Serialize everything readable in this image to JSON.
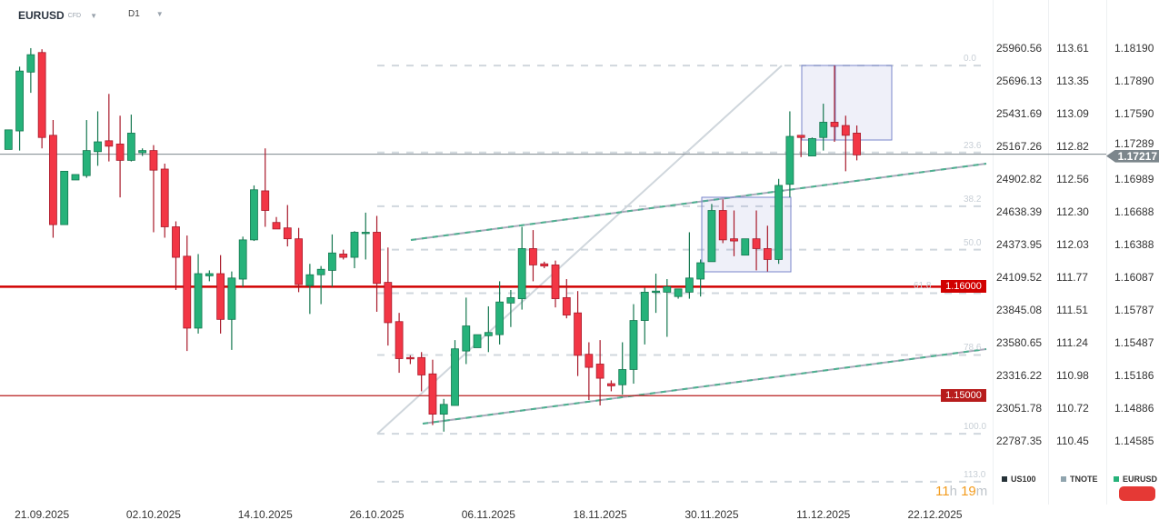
{
  "header": {
    "symbol": "EURUSD",
    "instrument_type": "CFD",
    "timeframe": "D1"
  },
  "colors": {
    "up": "#26b27a",
    "down": "#f23645",
    "support_1": "#d10000",
    "support_2": "#b71c1c",
    "current": "#7c868c",
    "fib": "#d0d7dd",
    "channel": "#4cb08f",
    "box": "#7986cb"
  },
  "current_price": "1.17217",
  "levels": [
    {
      "label": "1.16000",
      "price": 1.16,
      "color": "#d10000"
    },
    {
      "label": "1.15000",
      "price": 1.15,
      "color": "#b71c1c"
    }
  ],
  "axes": {
    "US100": [
      "25960.56",
      "25696.13",
      "25431.69",
      "25167.26",
      "24902.82",
      "24638.39",
      "24373.95",
      "24109.52",
      "23845.08",
      "23580.65",
      "23316.22",
      "23051.78",
      "22787.35"
    ],
    "TNOTE": [
      "113.61",
      "113.35",
      "113.09",
      "112.82",
      "112.56",
      "112.30",
      "112.03",
      "111.77",
      "111.51",
      "111.24",
      "110.98",
      "110.72",
      "110.45"
    ],
    "EURUSD": [
      "1.18190",
      "1.17890",
      "1.17590",
      "1.17289",
      "1.16989",
      "1.16688",
      "1.16388",
      "1.16087",
      "1.15787",
      "1.15487",
      "1.15186",
      "1.14886",
      "1.14585"
    ]
  },
  "legend": [
    {
      "label": "US100",
      "color": "#263238"
    },
    {
      "label": "TNOTE",
      "color": "#90a4ae"
    },
    {
      "label": "EURUSD",
      "color": "#26b27a"
    }
  ],
  "countdown": {
    "hours": "11",
    "h": "h",
    "minutes": "19",
    "m": "m"
  },
  "chart_data": {
    "type": "candlestick",
    "x_tick_labels": [
      "21.09.2025",
      "02.10.2025",
      "14.10.2025",
      "26.10.2025",
      "06.11.2025",
      "18.11.2025",
      "30.11.2025",
      "11.12.2025",
      "22.12.2025"
    ],
    "ylim": [
      1.14585,
      1.1819
    ],
    "ohlc": [
      [
        1.1726,
        1.1744,
        1.1726,
        1.1744
      ],
      [
        1.1743,
        1.1802,
        1.1725,
        1.1798
      ],
      [
        1.1797,
        1.1819,
        1.1778,
        1.1813
      ],
      [
        1.1815,
        1.1818,
        1.1727,
        1.1737
      ],
      [
        1.1739,
        1.1753,
        1.1645,
        1.1657
      ],
      [
        1.1657,
        1.1706,
        1.1657,
        1.1706
      ],
      [
        1.1698,
        1.1703,
        1.1698,
        1.1703
      ],
      [
        1.1702,
        1.1753,
        1.17,
        1.1725
      ],
      [
        1.1724,
        1.1761,
        1.1711,
        1.1733
      ],
      [
        1.1734,
        1.1777,
        1.1715,
        1.1729
      ],
      [
        1.1731,
        1.1757,
        1.1682,
        1.1716
      ],
      [
        1.1716,
        1.1758,
        1.1715,
        1.1741
      ],
      [
        1.1723,
        1.1727,
        1.172,
        1.1725
      ],
      [
        1.1725,
        1.173,
        1.165,
        1.1707
      ],
      [
        1.1708,
        1.1713,
        1.1645,
        1.1655
      ],
      [
        1.1655,
        1.166,
        1.1597,
        1.1627
      ],
      [
        1.1628,
        1.1647,
        1.1541,
        1.1562
      ],
      [
        1.1562,
        1.163,
        1.1557,
        1.1612
      ],
      [
        1.161,
        1.1615,
        1.1605,
        1.1612
      ],
      [
        1.1612,
        1.1629,
        1.1557,
        1.157
      ],
      [
        1.157,
        1.1614,
        1.1542,
        1.1608
      ],
      [
        1.1607,
        1.1646,
        1.16,
        1.1643
      ],
      [
        1.1643,
        1.1693,
        1.1642,
        1.1689
      ],
      [
        1.1688,
        1.1727,
        1.1655,
        1.167
      ],
      [
        1.1659,
        1.1664,
        1.1653,
        1.1653
      ],
      [
        1.1654,
        1.1675,
        1.1637,
        1.1644
      ],
      [
        1.1644,
        1.1654,
        1.1595,
        1.1602
      ],
      [
        1.1601,
        1.1621,
        1.1575,
        1.1611
      ],
      [
        1.1611,
        1.1619,
        1.1584,
        1.1616
      ],
      [
        1.1615,
        1.1648,
        1.16,
        1.1631
      ],
      [
        1.163,
        1.1634,
        1.1625,
        1.1627
      ],
      [
        1.1627,
        1.1651,
        1.1617,
        1.165
      ],
      [
        1.1649,
        1.1668,
        1.1625,
        1.165
      ],
      [
        1.165,
        1.1665,
        1.1577,
        1.1603
      ],
      [
        1.1604,
        1.1636,
        1.1546,
        1.1567
      ],
      [
        1.1568,
        1.1576,
        1.1521,
        1.1534
      ],
      [
        1.1535,
        1.1537,
        1.1529,
        1.1534
      ],
      [
        1.1535,
        1.154,
        1.1504,
        1.1519
      ],
      [
        1.152,
        1.1533,
        1.1473,
        1.1483
      ],
      [
        1.1483,
        1.1497,
        1.1467,
        1.1492
      ],
      [
        1.1491,
        1.1551,
        1.1491,
        1.1543
      ],
      [
        1.1541,
        1.159,
        1.1529,
        1.1564
      ],
      [
        1.1544,
        1.1556,
        1.1544,
        1.1556
      ],
      [
        1.1555,
        1.1582,
        1.154,
        1.1558
      ],
      [
        1.1556,
        1.1605,
        1.1547,
        1.1586
      ],
      [
        1.1585,
        1.1597,
        1.1563,
        1.159
      ],
      [
        1.1589,
        1.1655,
        1.1579,
        1.1635
      ],
      [
        1.1635,
        1.1652,
        1.1605,
        1.162
      ],
      [
        1.1621,
        1.1623,
        1.1617,
        1.1619
      ],
      [
        1.162,
        1.1624,
        1.1581,
        1.1589
      ],
      [
        1.159,
        1.1607,
        1.1571,
        1.1574
      ],
      [
        1.1576,
        1.1596,
        1.1518,
        1.1537
      ],
      [
        1.1538,
        1.1549,
        1.1496,
        1.1526
      ],
      [
        1.1529,
        1.1551,
        1.1491,
        1.1516
      ],
      [
        1.1511,
        1.1514,
        1.1504,
        1.1509
      ],
      [
        1.151,
        1.1549,
        1.1501,
        1.1524
      ],
      [
        1.1524,
        1.1584,
        1.1511,
        1.1569
      ],
      [
        1.1569,
        1.1599,
        1.1547,
        1.1595
      ],
      [
        1.1595,
        1.1612,
        1.1576,
        1.1596
      ],
      [
        1.1595,
        1.1607,
        1.1554,
        1.16
      ],
      [
        1.1591,
        1.1598,
        1.1589,
        1.1598
      ],
      [
        1.1595,
        1.165,
        1.1589,
        1.1608
      ],
      [
        1.1607,
        1.1625,
        1.1591,
        1.1622
      ],
      [
        1.1623,
        1.1676,
        1.1623,
        1.167
      ],
      [
        1.167,
        1.168,
        1.164,
        1.1643
      ],
      [
        1.1644,
        1.167,
        1.1628,
        1.1642
      ],
      [
        1.1629,
        1.1644,
        1.1629,
        1.1644
      ],
      [
        1.1644,
        1.167,
        1.1615,
        1.1635
      ],
      [
        1.1635,
        1.1656,
        1.1614,
        1.1625
      ],
      [
        1.1625,
        1.1699,
        1.1621,
        1.1693
      ],
      [
        1.1694,
        1.1761,
        1.1682,
        1.1738
      ],
      [
        1.1739,
        1.1739,
        1.1719,
        1.1737
      ],
      [
        1.172,
        1.1737,
        1.172,
        1.1736
      ],
      [
        1.1737,
        1.1768,
        1.1725,
        1.1751
      ],
      [
        1.1751,
        1.1803,
        1.1733,
        1.1747
      ],
      [
        1.1748,
        1.1757,
        1.1706,
        1.1739
      ],
      [
        1.1741,
        1.1748,
        1.1716,
        1.1721
      ]
    ],
    "fibonacci": {
      "high": 1.1803,
      "low": 1.1465,
      "levels": [
        "0.0",
        "23.6",
        "38.2",
        "50.0",
        "61.8",
        "78.6",
        "100.0",
        "113.0"
      ]
    }
  }
}
